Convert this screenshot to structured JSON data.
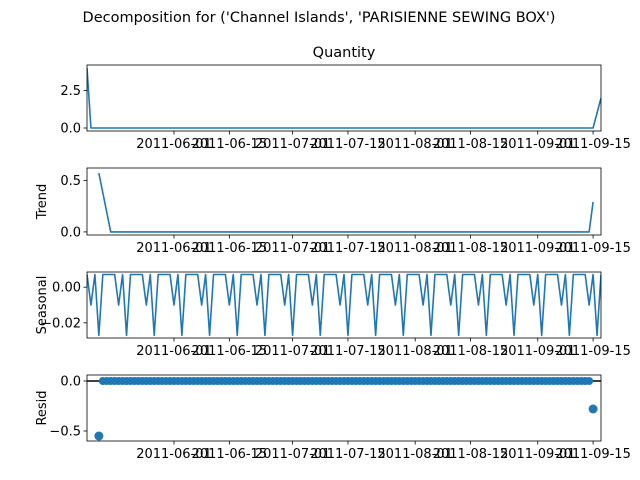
{
  "figure": {
    "suptitle": "Decomposition for ('Channel Islands', 'PARISIENNE SEWING BOX')",
    "line_color": "#1f77b4"
  },
  "chart_data": [
    {
      "type": "line",
      "title": "Quantity",
      "ylabel": "",
      "xlim": [
        "2011-05-10",
        "2011-09-17"
      ],
      "ylim": [
        -0.2,
        4.2
      ],
      "yticks": [
        0.0,
        2.5
      ],
      "ytick_labels": [
        "0.0",
        "2.5"
      ],
      "xticks": [
        "2011-06-01",
        "2011-06-15",
        "2011-07-01",
        "2011-07-15",
        "2011-08-01",
        "2011-08-15",
        "2011-09-01",
        "2011-09-15"
      ],
      "x_tick_labels": [
        "2011-06-01",
        "2011-06-15",
        "2011-07-01",
        "2011-07-15",
        "2011-08-01",
        "2011-08-15",
        "2011-09-01",
        "2011-09-15"
      ],
      "series": [
        {
          "name": "",
          "x": [
            "2011-05-10",
            "2011-05-11",
            "2011-09-15",
            "2011-09-17"
          ],
          "values": [
            4,
            0,
            0,
            2
          ]
        }
      ]
    },
    {
      "type": "line",
      "title": "",
      "ylabel": "Trend",
      "xlim": [
        "2011-05-10",
        "2011-09-17"
      ],
      "ylim": [
        -0.03,
        0.62
      ],
      "yticks": [
        0.0,
        0.5
      ],
      "ytick_labels": [
        "0.0",
        "0.5"
      ],
      "xticks": [
        "2011-06-01",
        "2011-06-15",
        "2011-07-01",
        "2011-07-15",
        "2011-08-01",
        "2011-08-15",
        "2011-09-01",
        "2011-09-15"
      ],
      "x_tick_labels": [
        "2011-06-01",
        "2011-06-15",
        "2011-07-01",
        "2011-07-15",
        "2011-08-01",
        "2011-08-15",
        "2011-09-01",
        "2011-09-15"
      ],
      "series": [
        {
          "name": "",
          "x": [
            "2011-05-13",
            "2011-05-16",
            "2011-09-14",
            "2011-09-15"
          ],
          "values": [
            0.57,
            0,
            0,
            0.29
          ]
        }
      ]
    },
    {
      "type": "line",
      "title": "",
      "ylabel": "Seasonal",
      "xlim": [
        "2011-05-10",
        "2011-09-17"
      ],
      "ylim": [
        -0.0285,
        0.0085
      ],
      "yticks": [
        0.0,
        -0.02
      ],
      "ytick_labels": [
        "0.00",
        "−0.02"
      ],
      "xticks": [
        "2011-06-01",
        "2011-06-15",
        "2011-07-01",
        "2011-07-15",
        "2011-08-01",
        "2011-08-15",
        "2011-09-01",
        "2011-09-15"
      ],
      "x_tick_labels": [
        "2011-06-01",
        "2011-06-15",
        "2011-07-01",
        "2011-07-15",
        "2011-08-01",
        "2011-08-15",
        "2011-09-01",
        "2011-09-15"
      ],
      "series": [
        {
          "name": "",
          "start": "2011-05-10",
          "end": "2011-09-17",
          "weekly_pattern": [
            0.0071,
            -0.01,
            0.0071,
            -0.027,
            0.0071,
            0.0071,
            0.0071
          ]
        }
      ]
    },
    {
      "type": "scatter",
      "title": "",
      "ylabel": "Resid",
      "xlim": [
        "2011-05-10",
        "2011-09-17"
      ],
      "ylim": [
        -0.6,
        0.06
      ],
      "yticks": [
        0.0,
        -0.5
      ],
      "ytick_labels": [
        "0.0",
        "−0.5"
      ],
      "xticks": [
        "2011-06-01",
        "2011-06-15",
        "2011-07-01",
        "2011-07-15",
        "2011-08-01",
        "2011-08-15",
        "2011-09-01",
        "2011-09-15"
      ],
      "x_tick_labels": [
        "2011-06-01",
        "2011-06-15",
        "2011-07-01",
        "2011-07-15",
        "2011-08-01",
        "2011-08-15",
        "2011-09-01",
        "2011-09-15"
      ],
      "baseline": 0,
      "series": [
        {
          "name": "",
          "points": [
            [
              "2011-05-13",
              -0.55
            ],
            [
              "2011-09-15",
              -0.28
            ]
          ],
          "zero_range": [
            "2011-05-14",
            "2011-09-14"
          ],
          "zero_value": 0
        }
      ]
    }
  ]
}
